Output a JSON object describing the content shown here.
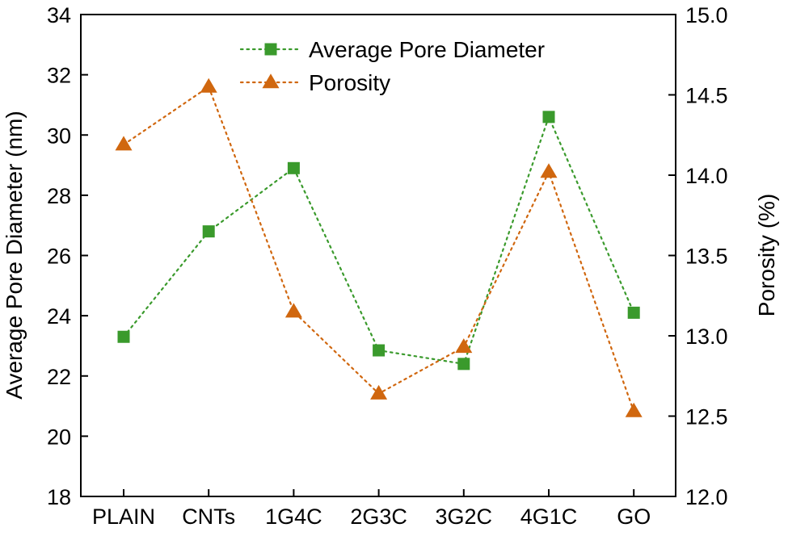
{
  "chart_data": {
    "type": "line",
    "categories": [
      "PLAIN",
      "CNTs",
      "1G4C",
      "2G3C",
      "3G2C",
      "4G1C",
      "GO"
    ],
    "series": [
      {
        "name": "Average Pore Diameter",
        "axis": "left",
        "marker": "square",
        "color": "#3a9a2c",
        "values": [
          23.3,
          26.8,
          28.9,
          22.85,
          22.4,
          30.6,
          24.1
        ]
      },
      {
        "name": "Porosity",
        "axis": "right",
        "marker": "triangle",
        "color": "#d0670f",
        "values": [
          14.19,
          14.55,
          13.15,
          12.64,
          12.93,
          14.02,
          12.53
        ]
      }
    ],
    "ylabel_left": "Average Pore Diameter (nm)",
    "ylabel_right": "Porosity (%)",
    "ylim_left": [
      18,
      34
    ],
    "yticks_left": [
      18,
      20,
      22,
      24,
      26,
      28,
      30,
      32,
      34
    ],
    "ylim_right": [
      12.0,
      15.0
    ],
    "yticks_right": [
      "12.0",
      "12.5",
      "13.0",
      "13.5",
      "14.0",
      "14.5",
      "15.0"
    ],
    "legend_position": "top-center",
    "grid": false
  }
}
